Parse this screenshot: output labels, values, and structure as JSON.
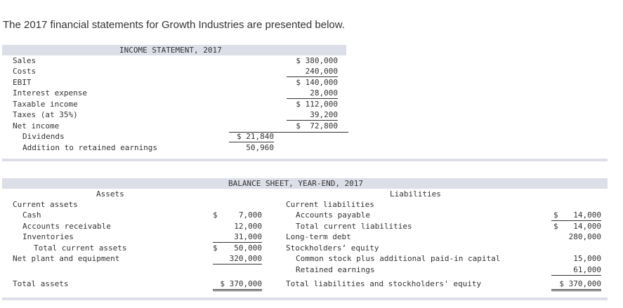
{
  "intro": "The 2017 financial statements for Growth Industries are presented below.",
  "income": {
    "title": "INCOME STATEMENT, 2017",
    "rows": [
      {
        "label": "Sales",
        "value": "$ 380,000"
      },
      {
        "label": "Costs",
        "value": "240,000"
      },
      {
        "label": "EBIT",
        "value": "$ 140,000"
      },
      {
        "label": "Interest expense",
        "value": "28,000"
      },
      {
        "label": "Taxable income",
        "value": "$ 112,000"
      },
      {
        "label": "Taxes (at 35%)",
        "value": "39,200"
      },
      {
        "label": "Net income",
        "value": "$  72,800"
      },
      {
        "label": "Dividends",
        "value": "$ 21,840"
      },
      {
        "label": "Addition to retained earnings",
        "value": "50,960"
      }
    ]
  },
  "balance": {
    "title": "BALANCE SHEET, YEAR-END, 2017",
    "assets_header": "Assets",
    "liab_header": "Liabilities",
    "assets": [
      {
        "label": "Current assets"
      },
      {
        "label": "Cash",
        "dollar": "$",
        "value": "7,000"
      },
      {
        "label": "Accounts receivable",
        "value": "12,000"
      },
      {
        "label": "Inventories",
        "value": "31,000"
      },
      {
        "label": "Total current assets",
        "dollar": "$",
        "value": "50,000"
      },
      {
        "label": "Net plant and equipment",
        "value": "320,000"
      },
      {
        "label": "Total assets",
        "value": "$ 370,000"
      }
    ],
    "liabilities": [
      {
        "label": "Current liabilities"
      },
      {
        "label": "Accounts payable",
        "dollar": "$",
        "value": "14,000"
      },
      {
        "label": "Total current liabilities",
        "dollar": "$",
        "value": "14,000"
      },
      {
        "label": "Long-term debt",
        "value": "280,000"
      },
      {
        "label": "Stockholders’ equity"
      },
      {
        "label": "Common stock plus additional paid-in capital",
        "value": "15,000"
      },
      {
        "label": "Retained earnings",
        "value": "61,000"
      },
      {
        "label": "Total liabilities and stockholders' equity",
        "value": "$ 370,000"
      }
    ]
  }
}
